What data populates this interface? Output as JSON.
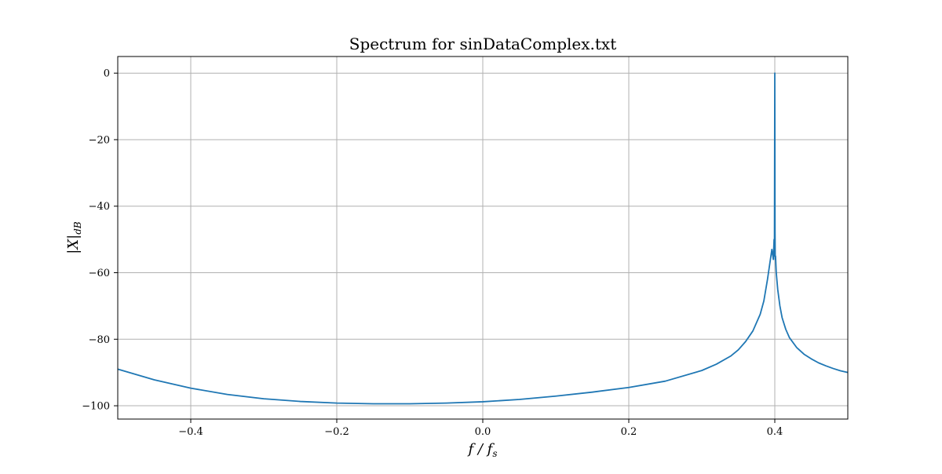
{
  "chart_data": {
    "type": "line",
    "title": "Spectrum for sinDataComplex.txt",
    "xlabel": "f / fs",
    "xlabel_main": "f / f",
    "xlabel_sub": "s",
    "ylabel": "|X|dB",
    "ylabel_main": "|X|",
    "ylabel_sub": "dB",
    "xlim": [
      -0.5,
      0.5
    ],
    "ylim": [
      -104,
      5
    ],
    "grid": true,
    "x_ticks": [
      -0.4,
      -0.2,
      0.0,
      0.2,
      0.4
    ],
    "x_tick_labels": [
      "−0.4",
      "−0.2",
      "0.0",
      "0.2",
      "0.4"
    ],
    "y_ticks": [
      0,
      -20,
      -40,
      -60,
      -80,
      -100
    ],
    "y_tick_labels": [
      "0",
      "−20",
      "−40",
      "−60",
      "−80",
      "−100"
    ],
    "colors": {
      "line": "#1f77b4",
      "grid": "#b0b0b0"
    },
    "series": [
      {
        "x": [
          -0.5,
          -0.45,
          -0.4,
          -0.35,
          -0.3,
          -0.25,
          -0.2,
          -0.15,
          -0.1,
          -0.05,
          0.0,
          0.05,
          0.1,
          0.15,
          0.2,
          0.25,
          0.3,
          0.32,
          0.34,
          0.35,
          0.36,
          0.37,
          0.38,
          0.385,
          0.39,
          0.393,
          0.396,
          0.398,
          0.399,
          0.3995,
          0.4,
          0.4003,
          0.4006,
          0.401,
          0.402,
          0.404,
          0.407,
          0.41,
          0.415,
          0.42,
          0.43,
          0.44,
          0.45,
          0.46,
          0.47,
          0.48,
          0.49,
          0.5
        ],
        "y": [
          -89,
          -92.2,
          -94.7,
          -96.6,
          -97.9,
          -98.7,
          -99.2,
          -99.4,
          -99.4,
          -99.2,
          -98.8,
          -98.1,
          -97.1,
          -95.9,
          -94.5,
          -92.6,
          -89.4,
          -87.5,
          -85.0,
          -83.2,
          -80.7,
          -77.5,
          -72.5,
          -68.5,
          -62.0,
          -57.5,
          -53.0,
          -56.0,
          -50.0,
          -55.0,
          0.0,
          -47.0,
          -56.0,
          -55.0,
          -60.0,
          -65.0,
          -70.0,
          -73.5,
          -77.0,
          -79.5,
          -82.5,
          -84.5,
          -85.9,
          -87.1,
          -88.0,
          -88.8,
          -89.5,
          -90.0
        ]
      }
    ]
  }
}
